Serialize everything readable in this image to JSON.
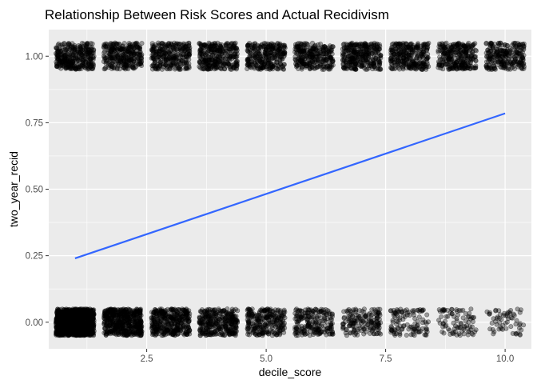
{
  "chart_data": {
    "type": "scatter",
    "title": "Relationship Between Risk Scores and Actual Recidivism",
    "xlabel": "decile_score",
    "ylabel": "two_year_recid",
    "xlim": [
      0.45,
      10.55
    ],
    "ylim": [
      -0.1,
      1.1
    ],
    "x_ticks": [
      2.5,
      5.0,
      7.5,
      10.0
    ],
    "x_tick_labels": [
      "2.5",
      "5.0",
      "7.5",
      "10.0"
    ],
    "y_ticks": [
      0.0,
      0.25,
      0.5,
      0.75,
      1.0
    ],
    "y_tick_labels": [
      "0.00",
      "0.25",
      "0.50",
      "0.75",
      "1.00"
    ],
    "jitter": {
      "x": 0.4,
      "y": 0.05
    },
    "point_groups": [
      {
        "x": 1,
        "y": 0,
        "count": 1100
      },
      {
        "x": 2,
        "y": 0,
        "count": 520
      },
      {
        "x": 3,
        "y": 0,
        "count": 380
      },
      {
        "x": 4,
        "y": 0,
        "count": 330
      },
      {
        "x": 5,
        "y": 0,
        "count": 260
      },
      {
        "x": 6,
        "y": 0,
        "count": 210
      },
      {
        "x": 7,
        "y": 0,
        "count": 160
      },
      {
        "x": 8,
        "y": 0,
        "count": 110
      },
      {
        "x": 9,
        "y": 0,
        "count": 85
      },
      {
        "x": 10,
        "y": 0,
        "count": 60
      },
      {
        "x": 1,
        "y": 1,
        "count": 340
      },
      {
        "x": 2,
        "y": 1,
        "count": 300
      },
      {
        "x": 3,
        "y": 1,
        "count": 290
      },
      {
        "x": 4,
        "y": 1,
        "count": 320
      },
      {
        "x": 5,
        "y": 1,
        "count": 300
      },
      {
        "x": 6,
        "y": 1,
        "count": 290
      },
      {
        "x": 7,
        "y": 1,
        "count": 320
      },
      {
        "x": 8,
        "y": 1,
        "count": 300
      },
      {
        "x": 9,
        "y": 1,
        "count": 300
      },
      {
        "x": 10,
        "y": 1,
        "count": 260
      }
    ],
    "fit_line": {
      "x": [
        1,
        10
      ],
      "y": [
        0.24,
        0.785
      ]
    },
    "colors": {
      "panel": "#EBEBEB",
      "grid_major": "#FFFFFF",
      "point": "#000000",
      "fit_line": "#3366FF",
      "tick_label": "#4D4D4D"
    },
    "grid": true,
    "legend": "none"
  }
}
